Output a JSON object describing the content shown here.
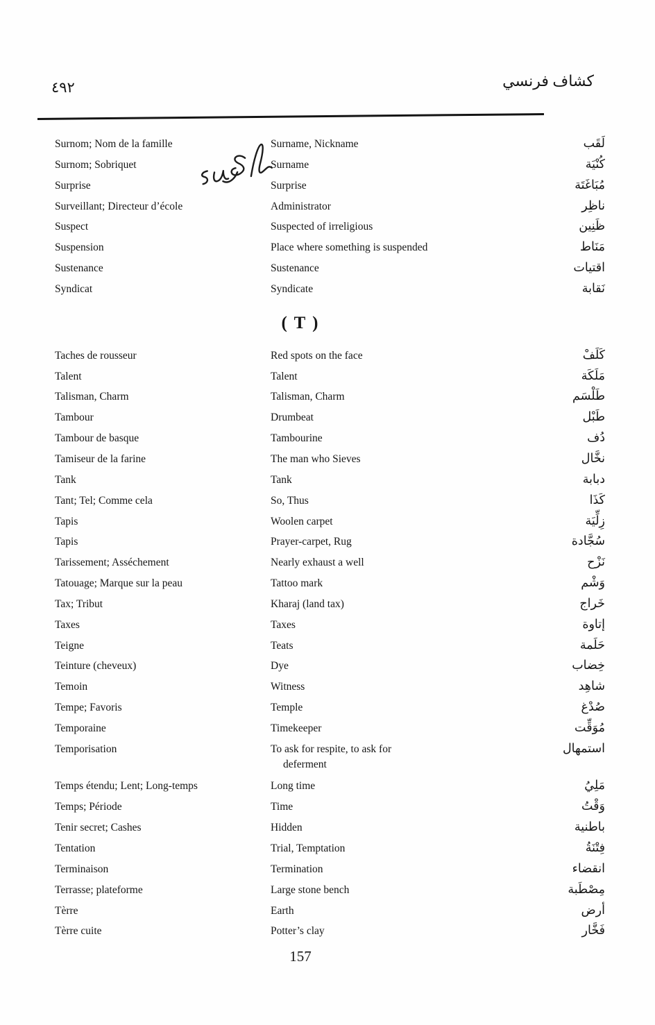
{
  "header": {
    "page_number_arabic": "٤٩٢",
    "title_arabic": "كشاف فرنسي"
  },
  "footer": {
    "page_number": "157"
  },
  "annotation": {
    "handwritten_text": "sugh"
  },
  "sections": [
    {
      "title": "",
      "rows": [
        {
          "fr": "Surnom; Nom de la famille",
          "en": "Surname, Nickname",
          "ar": "لَقَب"
        },
        {
          "fr": "Surnom; Sobriquet",
          "en": "Surname",
          "ar": "كُنْيَة"
        },
        {
          "fr": "Surprise",
          "en": "Surprise",
          "ar": "مُبَاغَتَة"
        },
        {
          "fr": "Surveillant; Directeur d’école",
          "en": "Administrator",
          "ar": "ناظِر"
        },
        {
          "fr": "Suspect",
          "en": "Suspected of irreligious",
          "ar": "ظَنِين"
        },
        {
          "fr": "Suspension",
          "en": "Place where something is suspended",
          "ar": "مَنَاط"
        },
        {
          "fr": "Sustenance",
          "en": "Sustenance",
          "ar": "اقتيات"
        },
        {
          "fr": "Syndicat",
          "en": "Syndicate",
          "ar": "نَقابة"
        }
      ]
    },
    {
      "title": "( T )",
      "rows": [
        {
          "fr": "Taches de rousseur",
          "en": "Red spots on the face",
          "ar": "كَلَفْ"
        },
        {
          "fr": "Talent",
          "en": "Talent",
          "ar": "مَلَكَة"
        },
        {
          "fr": "Talisman, Charm",
          "en": "Talisman, Charm",
          "ar": "طَلْسَم"
        },
        {
          "fr": "Tambour",
          "en": "Drumbeat",
          "ar": "طَبْل"
        },
        {
          "fr": "Tambour de basque",
          "en": "Tambourine",
          "ar": "دُف"
        },
        {
          "fr": "Tamiseur de la farine",
          "en": "The man who Sieves",
          "ar": "نخَّال"
        },
        {
          "fr": "Tank",
          "en": "Tank",
          "ar": "دبابة"
        },
        {
          "fr": "Tant; Tel; Comme cela",
          "en": "So, Thus",
          "ar": "كَذَا"
        },
        {
          "fr": "Tapis",
          "en": "Woolen carpet",
          "ar": "زِلِّيَة"
        },
        {
          "fr": "Tapis",
          "en": "Prayer-carpet, Rug",
          "ar": "سُجَّادة"
        },
        {
          "fr": "Tarissement; Asséchement",
          "en": "Nearly exhaust a well",
          "ar": "نَزْح"
        },
        {
          "fr": "Tatouage; Marque sur la peau",
          "en": "Tattoo mark",
          "ar": "وَشْم"
        },
        {
          "fr": "Tax; Tribut",
          "en": "Kharaj (land tax)",
          "ar": "خَراج"
        },
        {
          "fr": "Taxes",
          "en": "Taxes",
          "ar": "إتاوة"
        },
        {
          "fr": "Teigne",
          "en": "Teats",
          "ar": "حَلَمة"
        },
        {
          "fr": "Teinture (cheveux)",
          "en": "Dye",
          "ar": "خِضاب"
        },
        {
          "fr": "Temoin",
          "en": "Witness",
          "ar": "شاهِد"
        },
        {
          "fr": "Tempe; Favoris",
          "en": "Temple",
          "ar": "صُدْغ"
        },
        {
          "fr": "Temporaine",
          "en": "Timekeeper",
          "ar": "مُوَقِّت"
        },
        {
          "fr": "Temporisation",
          "en": "To ask for respite, to ask for",
          "en2": "deferment",
          "ar": "استمهال"
        },
        {
          "fr": "Temps étendu; Lent; Long-temps",
          "en": "Long time",
          "ar": "مَلِيُ"
        },
        {
          "fr": "Temps; Période",
          "en": "Time",
          "ar": "وَقْتُ"
        },
        {
          "fr": "Tenir secret; Cashes",
          "en": "Hidden",
          "ar": "باطنية"
        },
        {
          "fr": "Tentation",
          "en": "Trial, Temptation",
          "ar": "فِتْنَةُ"
        },
        {
          "fr": "Terminaison",
          "en": "Termination",
          "ar": "انقضاء"
        },
        {
          "fr": "Terrasse; plateforme",
          "en": "Large stone bench",
          "ar": "مِصْطَبة"
        },
        {
          "fr": "Tèrre",
          "en": "Earth",
          "ar": "أرض"
        },
        {
          "fr": "Tèrre cuite",
          "en": "Potter’s clay",
          "ar": "فَخَّار"
        }
      ]
    }
  ]
}
